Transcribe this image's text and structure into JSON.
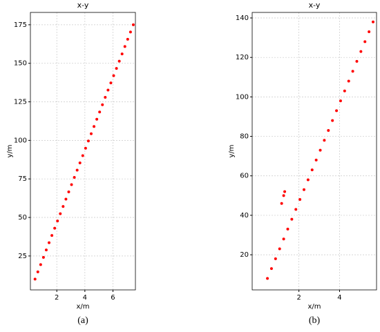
{
  "chart_data": [
    {
      "type": "scatter",
      "title": "x-y",
      "x_label": "x/m",
      "y_label": "y/m",
      "caption": "(a)",
      "color": "#ff0000",
      "grid": true,
      "xlim": [
        0.12,
        7.6
      ],
      "ylim": [
        3,
        183
      ],
      "xticks": [
        2,
        4,
        6
      ],
      "yticks": [
        25,
        50,
        75,
        100,
        125,
        150,
        175
      ],
      "x": [
        0.45,
        0.65,
        0.85,
        1.05,
        1.25,
        1.45,
        1.65,
        1.85,
        2.05,
        2.25,
        2.45,
        2.65,
        2.85,
        3.05,
        3.25,
        3.45,
        3.65,
        3.85,
        4.05,
        4.25,
        4.45,
        4.65,
        4.85,
        5.05,
        5.25,
        5.45,
        5.65,
        5.85,
        6.05,
        6.25,
        6.45,
        6.65,
        6.85,
        7.05,
        7.25,
        7.45
      ],
      "y": [
        10,
        14.7,
        19.4,
        24.1,
        28.9,
        33.6,
        38.3,
        43.0,
        47.7,
        52.4,
        57.1,
        61.9,
        66.6,
        71.3,
        76.0,
        80.7,
        85.4,
        90.1,
        94.9,
        99.6,
        104.3,
        109.0,
        113.7,
        118.4,
        123.1,
        127.9,
        132.6,
        137.3,
        142.0,
        146.7,
        151.4,
        156.1,
        160.9,
        165.6,
        170.3,
        175.0
      ]
    },
    {
      "type": "scatter",
      "title": "x-y",
      "x_label": "x/m",
      "y_label": "y/m",
      "caption": "(b)",
      "color": "#ff0000",
      "grid": true,
      "xlim": [
        -0.3,
        5.82
      ],
      "ylim": [
        2.2,
        142.8
      ],
      "xticks": [
        2,
        4
      ],
      "yticks": [
        20,
        40,
        60,
        80,
        100,
        120,
        140
      ],
      "x": [
        0.45,
        0.65,
        0.85,
        1.05,
        1.15,
        1.25,
        1.25,
        1.3,
        1.45,
        1.65,
        1.85,
        2.05,
        2.25,
        2.45,
        2.65,
        2.85,
        3.05,
        3.25,
        3.45,
        3.65,
        3.85,
        4.05,
        4.25,
        4.45,
        4.65,
        4.85,
        5.05,
        5.25,
        5.45,
        5.65
      ],
      "y": [
        8,
        13,
        18,
        23,
        46,
        50,
        28,
        52,
        33,
        38,
        43,
        48,
        53,
        58,
        63,
        68,
        73,
        78,
        83,
        88,
        93,
        98,
        103,
        108,
        113,
        118,
        123,
        128,
        133,
        138
      ]
    }
  ]
}
